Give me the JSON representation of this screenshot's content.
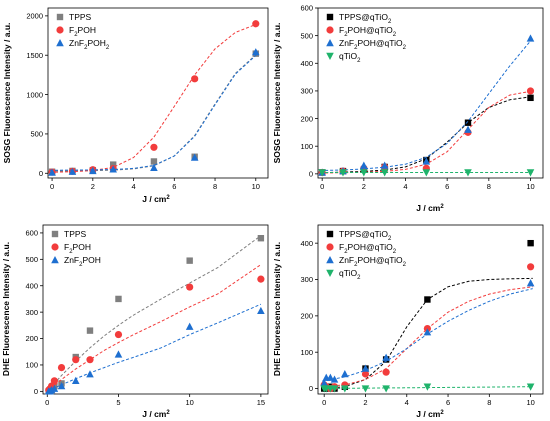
{
  "figure": {
    "chart_data": [
      {
        "type": "scatter",
        "title": "",
        "xlabel": "J / cm2",
        "ylabel": "SOSG Fluorescence Intensity / a.u.",
        "xlim": [
          -0.2,
          10.6
        ],
        "ylim": [
          -60,
          2100
        ],
        "xticks": [
          0,
          2,
          4,
          6,
          8,
          10
        ],
        "yticks": [
          0,
          500,
          1000,
          1500,
          2000
        ],
        "legend_position": "top-left",
        "series": [
          {
            "name": "TPPS",
            "marker": "square",
            "color": "#7f7f7f",
            "x": [
              0,
              1,
              2,
              3,
              5,
              7,
              10
            ],
            "y": [
              20,
              30,
              40,
              110,
              150,
              210,
              1520
            ],
            "fit_x": [
              -0.1,
              1,
              2,
              3,
              4,
              5,
              6,
              7,
              8,
              9,
              10.1
            ],
            "fit_y": [
              28,
              30,
              33,
              40,
              55,
              95,
              220,
              480,
              880,
              1270,
              1530
            ]
          },
          {
            "name": "F₂POH",
            "marker": "circle",
            "color": "#f23c3c",
            "x": [
              0,
              1,
              2,
              3,
              5,
              7,
              10
            ],
            "y": [
              15,
              25,
              45,
              60,
              330,
              1200,
              1900
            ],
            "fit_x": [
              -0.1,
              1,
              2,
              3,
              4,
              5,
              6,
              7,
              8,
              9,
              10.1
            ],
            "fit_y": [
              12,
              20,
              35,
              75,
              200,
              460,
              850,
              1250,
              1580,
              1790,
              1900
            ]
          },
          {
            "name": "ZnF₂POH₂",
            "marker": "triangle-up",
            "color": "#1e6fd0",
            "x": [
              0,
              1,
              2,
              3,
              5,
              7,
              10
            ],
            "y": [
              10,
              20,
              30,
              50,
              70,
              200,
              1540
            ],
            "fit_x": [
              -0.1,
              1,
              2,
              3,
              4,
              5,
              6,
              7,
              8,
              9,
              10.1
            ],
            "fit_y": [
              38,
              40,
              43,
              48,
              62,
              100,
              220,
              470,
              870,
              1260,
              1520
            ]
          }
        ]
      },
      {
        "type": "scatter",
        "title": "",
        "xlabel": "J / cm2",
        "ylabel": "SOSG Fluorescence Intensity / a.u.",
        "xlim": [
          -0.2,
          10.6
        ],
        "ylim": [
          -15,
          600
        ],
        "xticks": [
          0,
          2,
          4,
          6,
          8,
          10
        ],
        "yticks": [
          0,
          100,
          200,
          300,
          400,
          500,
          600
        ],
        "legend_position": "top-left",
        "series": [
          {
            "name": "TPPS@qTiO₂",
            "marker": "square",
            "color": "#000000",
            "x": [
              0,
              1,
              2,
              3,
              5,
              7,
              10
            ],
            "y": [
              5,
              10,
              15,
              25,
              50,
              185,
              275
            ],
            "fit_x": [
              -0.1,
              1,
              2,
              3,
              4,
              5,
              6,
              7,
              8,
              9,
              10.1
            ],
            "fit_y": [
              4,
              6,
              9,
              14,
              25,
              55,
              115,
              185,
              240,
              268,
              280
            ]
          },
          {
            "name": "F₂POH@qTiO₂",
            "marker": "circle",
            "color": "#f23c3c",
            "x": [
              0,
              1,
              2,
              3,
              5,
              7,
              10
            ],
            "y": [
              5,
              10,
              20,
              25,
              20,
              150,
              300
            ],
            "fit_x": [
              -0.1,
              1,
              2,
              3,
              4,
              5,
              6,
              7,
              8,
              9,
              10.1
            ],
            "fit_y": [
              3,
              4,
              6,
              9,
              16,
              35,
              80,
              160,
              240,
              285,
              300
            ]
          },
          {
            "name": "ZnF₂POH@qTiO₂",
            "marker": "triangle-up",
            "color": "#1e6fd0",
            "x": [
              0,
              1,
              2,
              3,
              5,
              7,
              10
            ],
            "y": [
              5,
              10,
              30,
              30,
              45,
              160,
              490
            ],
            "fit_x": [
              -0.1,
              1,
              2,
              3,
              4,
              5,
              6,
              7,
              8,
              9,
              10.1
            ],
            "fit_y": [
              12,
              14,
              18,
              24,
              35,
              60,
              110,
              190,
              290,
              390,
              490
            ]
          },
          {
            "name": "qTiO₂",
            "marker": "triangle-down",
            "color": "#1fb36b",
            "x": [
              0,
              1,
              2,
              3,
              5,
              7,
              10
            ],
            "y": [
              5,
              5,
              5,
              5,
              5,
              5,
              5
            ],
            "fit_x": [
              -0.1,
              10.1
            ],
            "fit_y": [
              5,
              5
            ]
          }
        ]
      },
      {
        "type": "scatter",
        "title": "",
        "xlabel": "J / cm2",
        "ylabel": "DHE Fluorescence Intensity / a.u.",
        "xlim": [
          -0.3,
          15.5
        ],
        "ylim": [
          -10,
          630
        ],
        "xticks": [
          0,
          5,
          10,
          15
        ],
        "yticks": [
          0,
          100,
          200,
          300,
          400,
          500,
          600
        ],
        "legend_position": "top-left",
        "series": [
          {
            "name": "TPPS",
            "marker": "square",
            "color": "#7f7f7f",
            "x": [
              0.1,
              0.2,
              0.3,
              0.5,
              1,
              2,
              3,
              5,
              10,
              15
            ],
            "y": [
              0,
              5,
              10,
              20,
              30,
              130,
              230,
              350,
              495,
              580
            ],
            "fit_x": [
              0,
              1,
              2,
              3,
              4,
              5,
              6,
              8,
              10,
              12,
              15
            ],
            "fit_y": [
              0,
              60,
              115,
              165,
              210,
              250,
              287,
              350,
              410,
              470,
              590
            ]
          },
          {
            "name": "F₂POH",
            "marker": "circle",
            "color": "#f23c3c",
            "x": [
              0.1,
              0.2,
              0.3,
              0.5,
              1,
              2,
              3,
              5,
              10,
              15
            ],
            "y": [
              5,
              10,
              20,
              40,
              90,
              120,
              120,
              215,
              395,
              425
            ],
            "fit_x": [
              0,
              1,
              2,
              3,
              4,
              5,
              6,
              8,
              10,
              12,
              15
            ],
            "fit_y": [
              0,
              45,
              85,
              120,
              155,
              185,
              213,
              265,
              320,
              370,
              480
            ]
          },
          {
            "name": "ZnF₂POH",
            "marker": "triangle-up",
            "color": "#1e6fd0",
            "x": [
              0.1,
              0.2,
              0.3,
              0.5,
              1,
              2,
              3,
              5,
              10,
              15
            ],
            "y": [
              0,
              0,
              5,
              10,
              20,
              40,
              65,
              140,
              245,
              305
            ],
            "fit_x": [
              0,
              1,
              2,
              3,
              4,
              5,
              6,
              8,
              10,
              12,
              15
            ],
            "fit_y": [
              0,
              25,
              48,
              70,
              90,
              110,
              128,
              165,
              215,
              260,
              330
            ]
          }
        ]
      },
      {
        "type": "scatter",
        "title": "",
        "xlabel": "J / cm2",
        "ylabel": "DHE Fluorescence Intensity / a.u.",
        "xlim": [
          -0.3,
          10.6
        ],
        "ylim": [
          -15,
          450
        ],
        "xticks": [
          0,
          2,
          4,
          6,
          8,
          10
        ],
        "yticks": [
          0,
          100,
          200,
          300,
          400
        ],
        "legend_position": "top-left",
        "series": [
          {
            "name": "TPPS@qTiO₂",
            "marker": "square",
            "color": "#000000",
            "x": [
              0,
              0.1,
              0.3,
              0.5,
              1,
              2,
              3,
              5,
              10
            ],
            "y": [
              0,
              0,
              5,
              0,
              5,
              55,
              80,
              245,
              400
            ],
            "fit_x": [
              -0.1,
              1,
              2,
              3,
              4,
              5,
              6,
              7,
              8,
              9,
              10.1
            ],
            "fit_y": [
              0,
              5,
              25,
              75,
              170,
              245,
              280,
              295,
              300,
              302,
              303
            ]
          },
          {
            "name": "F₂POH@qTiO₂",
            "marker": "circle",
            "color": "#f23c3c",
            "x": [
              0,
              0.1,
              0.3,
              0.5,
              1,
              2,
              3,
              5,
              10
            ],
            "y": [
              10,
              5,
              0,
              5,
              10,
              40,
              45,
              165,
              335
            ],
            "fit_x": [
              -0.1,
              1,
              2,
              3,
              4,
              5,
              6,
              7,
              8,
              9,
              10.1
            ],
            "fit_y": [
              5,
              10,
              25,
              55,
              110,
              165,
              210,
              240,
              260,
              272,
              280
            ]
          },
          {
            "name": "ZnF₂POH@qTiO₂",
            "marker": "triangle-up",
            "color": "#1e6fd0",
            "x": [
              0,
              0.1,
              0.3,
              0.5,
              1,
              2,
              3,
              5,
              10
            ],
            "y": [
              15,
              30,
              30,
              25,
              40,
              55,
              85,
              155,
              290
            ],
            "fit_x": [
              -0.1,
              1,
              2,
              3,
              4,
              5,
              6,
              7,
              8,
              9,
              10.1
            ],
            "fit_y": [
              20,
              32,
              50,
              75,
              110,
              150,
              185,
              215,
              240,
              260,
              275
            ]
          },
          {
            "name": "qTiO₂",
            "marker": "triangle-down",
            "color": "#1fb36b",
            "x": [
              0,
              0.1,
              0.3,
              0.5,
              1,
              2,
              3,
              5,
              10
            ],
            "y": [
              0,
              0,
              0,
              0,
              0,
              0,
              0,
              5,
              5
            ],
            "fit_x": [
              -0.1,
              10.1
            ],
            "fit_y": [
              0,
              5
            ]
          }
        ]
      }
    ]
  }
}
